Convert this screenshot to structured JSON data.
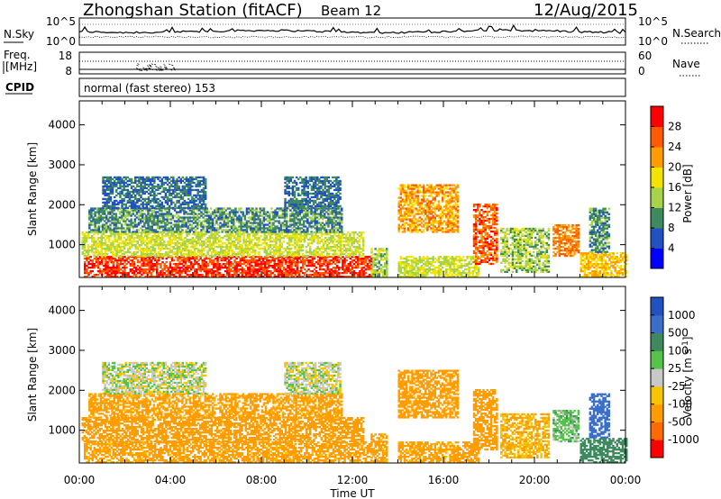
{
  "header": {
    "station": "Zhongshan Station (fitACF)",
    "beam": "Beam 12",
    "date": "12/Aug/2015"
  },
  "strip_nsky": {
    "label": "N.Sky",
    "left_ticks": [
      "10^5",
      "10^0"
    ],
    "right_label": "N.Search",
    "right_ticks": [
      "10^5",
      "10^0"
    ]
  },
  "strip_freq": {
    "label_top": "Freq.",
    "label_unit": "[MHz]",
    "left_ticks": [
      "18",
      "8"
    ],
    "right_label": "Nave",
    "right_ticks": [
      "60",
      "0"
    ]
  },
  "cpid": {
    "label": "CPID",
    "value": "normal (fast stereo) 153"
  },
  "x_axis": {
    "title": "Time UT",
    "ticks": [
      "00:00",
      "04:00",
      "08:00",
      "12:00",
      "16:00",
      "20:00",
      "00:00"
    ]
  },
  "colorbar_power": {
    "label": "Power [dB]",
    "ticks": [
      "4",
      "8",
      "12",
      "16",
      "20",
      "24",
      "28"
    ],
    "colors": [
      "#0000ff",
      "#2251c0",
      "#3e8a5e",
      "#a6d34a",
      "#f2e300",
      "#ff9d00",
      "#ff5a00",
      "#ff0000"
    ]
  },
  "colorbar_velocity": {
    "label": "Velocity [m s-1]",
    "ticks": [
      "1000",
      "500",
      "100",
      "25",
      "-25",
      "-100",
      "-500",
      "-1000"
    ],
    "colors": [
      "#2251c0",
      "#3b6ec8",
      "#3e8a5e",
      "#55c24a",
      "#c8c8c8",
      "#f6c400",
      "#ff9d00",
      "#ff6a00",
      "#ff0000"
    ]
  },
  "chart_data": [
    {
      "type": "heatmap",
      "title": "Zhongshan Station (fitACF)  Beam 12  12/Aug/2015",
      "xlabel": "Time UT",
      "ylabel": "Slant Range [km]",
      "x_ticks": [
        "00:00",
        "04:00",
        "08:00",
        "12:00",
        "16:00",
        "20:00",
        "00:00"
      ],
      "y_ticks": [
        1000,
        2000,
        3000,
        4000
      ],
      "ylim": [
        180,
        4600
      ],
      "colorbar": {
        "label": "Power [dB]",
        "ticks": [
          4,
          8,
          12,
          16,
          20,
          24,
          28
        ]
      },
      "regions": [
        {
          "t": [
            0.2,
            12.8
          ],
          "r": [
            180,
            700
          ],
          "v": 28
        },
        {
          "t": [
            0.1,
            12.5
          ],
          "r": [
            700,
            1300
          ],
          "v": 16
        },
        {
          "t": [
            0.4,
            11.5
          ],
          "r": [
            1300,
            1900
          ],
          "v": 10
        },
        {
          "t": [
            1.0,
            5.5
          ],
          "r": [
            1900,
            2700
          ],
          "v": 8
        },
        {
          "t": [
            9.0,
            11.5
          ],
          "r": [
            1900,
            2700
          ],
          "v": 8
        },
        {
          "t": [
            12.8,
            13.5
          ],
          "r": [
            200,
            900
          ],
          "v": 14
        },
        {
          "t": [
            14.0,
            16.6
          ],
          "r": [
            1300,
            2500
          ],
          "v": 22
        },
        {
          "t": [
            14.0,
            17.5
          ],
          "r": [
            180,
            700
          ],
          "v": 16
        },
        {
          "t": [
            17.3,
            18.3
          ],
          "r": [
            500,
            2000
          ],
          "v": 26
        },
        {
          "t": [
            18.5,
            20.6
          ],
          "r": [
            300,
            1400
          ],
          "v": 14
        },
        {
          "t": [
            20.8,
            21.9
          ],
          "r": [
            700,
            1500
          ],
          "v": 24
        },
        {
          "t": [
            22.0,
            24.0
          ],
          "r": [
            180,
            800
          ],
          "v": 20
        },
        {
          "t": [
            22.4,
            23.3
          ],
          "r": [
            800,
            1900
          ],
          "v": 10
        }
      ]
    },
    {
      "type": "heatmap",
      "xlabel": "Time UT",
      "ylabel": "Slant Range [km]",
      "x_ticks": [
        "00:00",
        "04:00",
        "08:00",
        "12:00",
        "16:00",
        "20:00",
        "00:00"
      ],
      "y_ticks": [
        1000,
        2000,
        3000,
        4000
      ],
      "ylim": [
        180,
        4600
      ],
      "colorbar": {
        "label": "Velocity [m s-1]",
        "ticks": [
          1000,
          500,
          100,
          25,
          -25,
          -100,
          -500,
          -1000
        ]
      },
      "regions": [
        {
          "t": [
            0.2,
            12.8
          ],
          "r": [
            180,
            700
          ],
          "v": -150
        },
        {
          "t": [
            0.1,
            12.5
          ],
          "r": [
            700,
            1300
          ],
          "v": -200
        },
        {
          "t": [
            0.4,
            11.5
          ],
          "r": [
            1300,
            1900
          ],
          "v": -150
        },
        {
          "t": [
            1.0,
            5.5
          ],
          "r": [
            1900,
            2700
          ],
          "v": 0
        },
        {
          "t": [
            9.0,
            11.5
          ],
          "r": [
            1900,
            2700
          ],
          "v": 0
        },
        {
          "t": [
            12.8,
            13.5
          ],
          "r": [
            200,
            900
          ],
          "v": -150
        },
        {
          "t": [
            14.0,
            16.6
          ],
          "r": [
            1300,
            2500
          ],
          "v": -300
        },
        {
          "t": [
            14.0,
            17.5
          ],
          "r": [
            180,
            700
          ],
          "v": -150
        },
        {
          "t": [
            17.3,
            18.3
          ],
          "r": [
            500,
            2000
          ],
          "v": -300
        },
        {
          "t": [
            18.5,
            20.6
          ],
          "r": [
            300,
            1400
          ],
          "v": -100
        },
        {
          "t": [
            20.8,
            21.9
          ],
          "r": [
            700,
            1500
          ],
          "v": 60
        },
        {
          "t": [
            22.0,
            24.0
          ],
          "r": [
            180,
            800
          ],
          "v": 200
        },
        {
          "t": [
            22.4,
            23.3
          ],
          "r": [
            800,
            1900
          ],
          "v": 700
        }
      ]
    }
  ]
}
